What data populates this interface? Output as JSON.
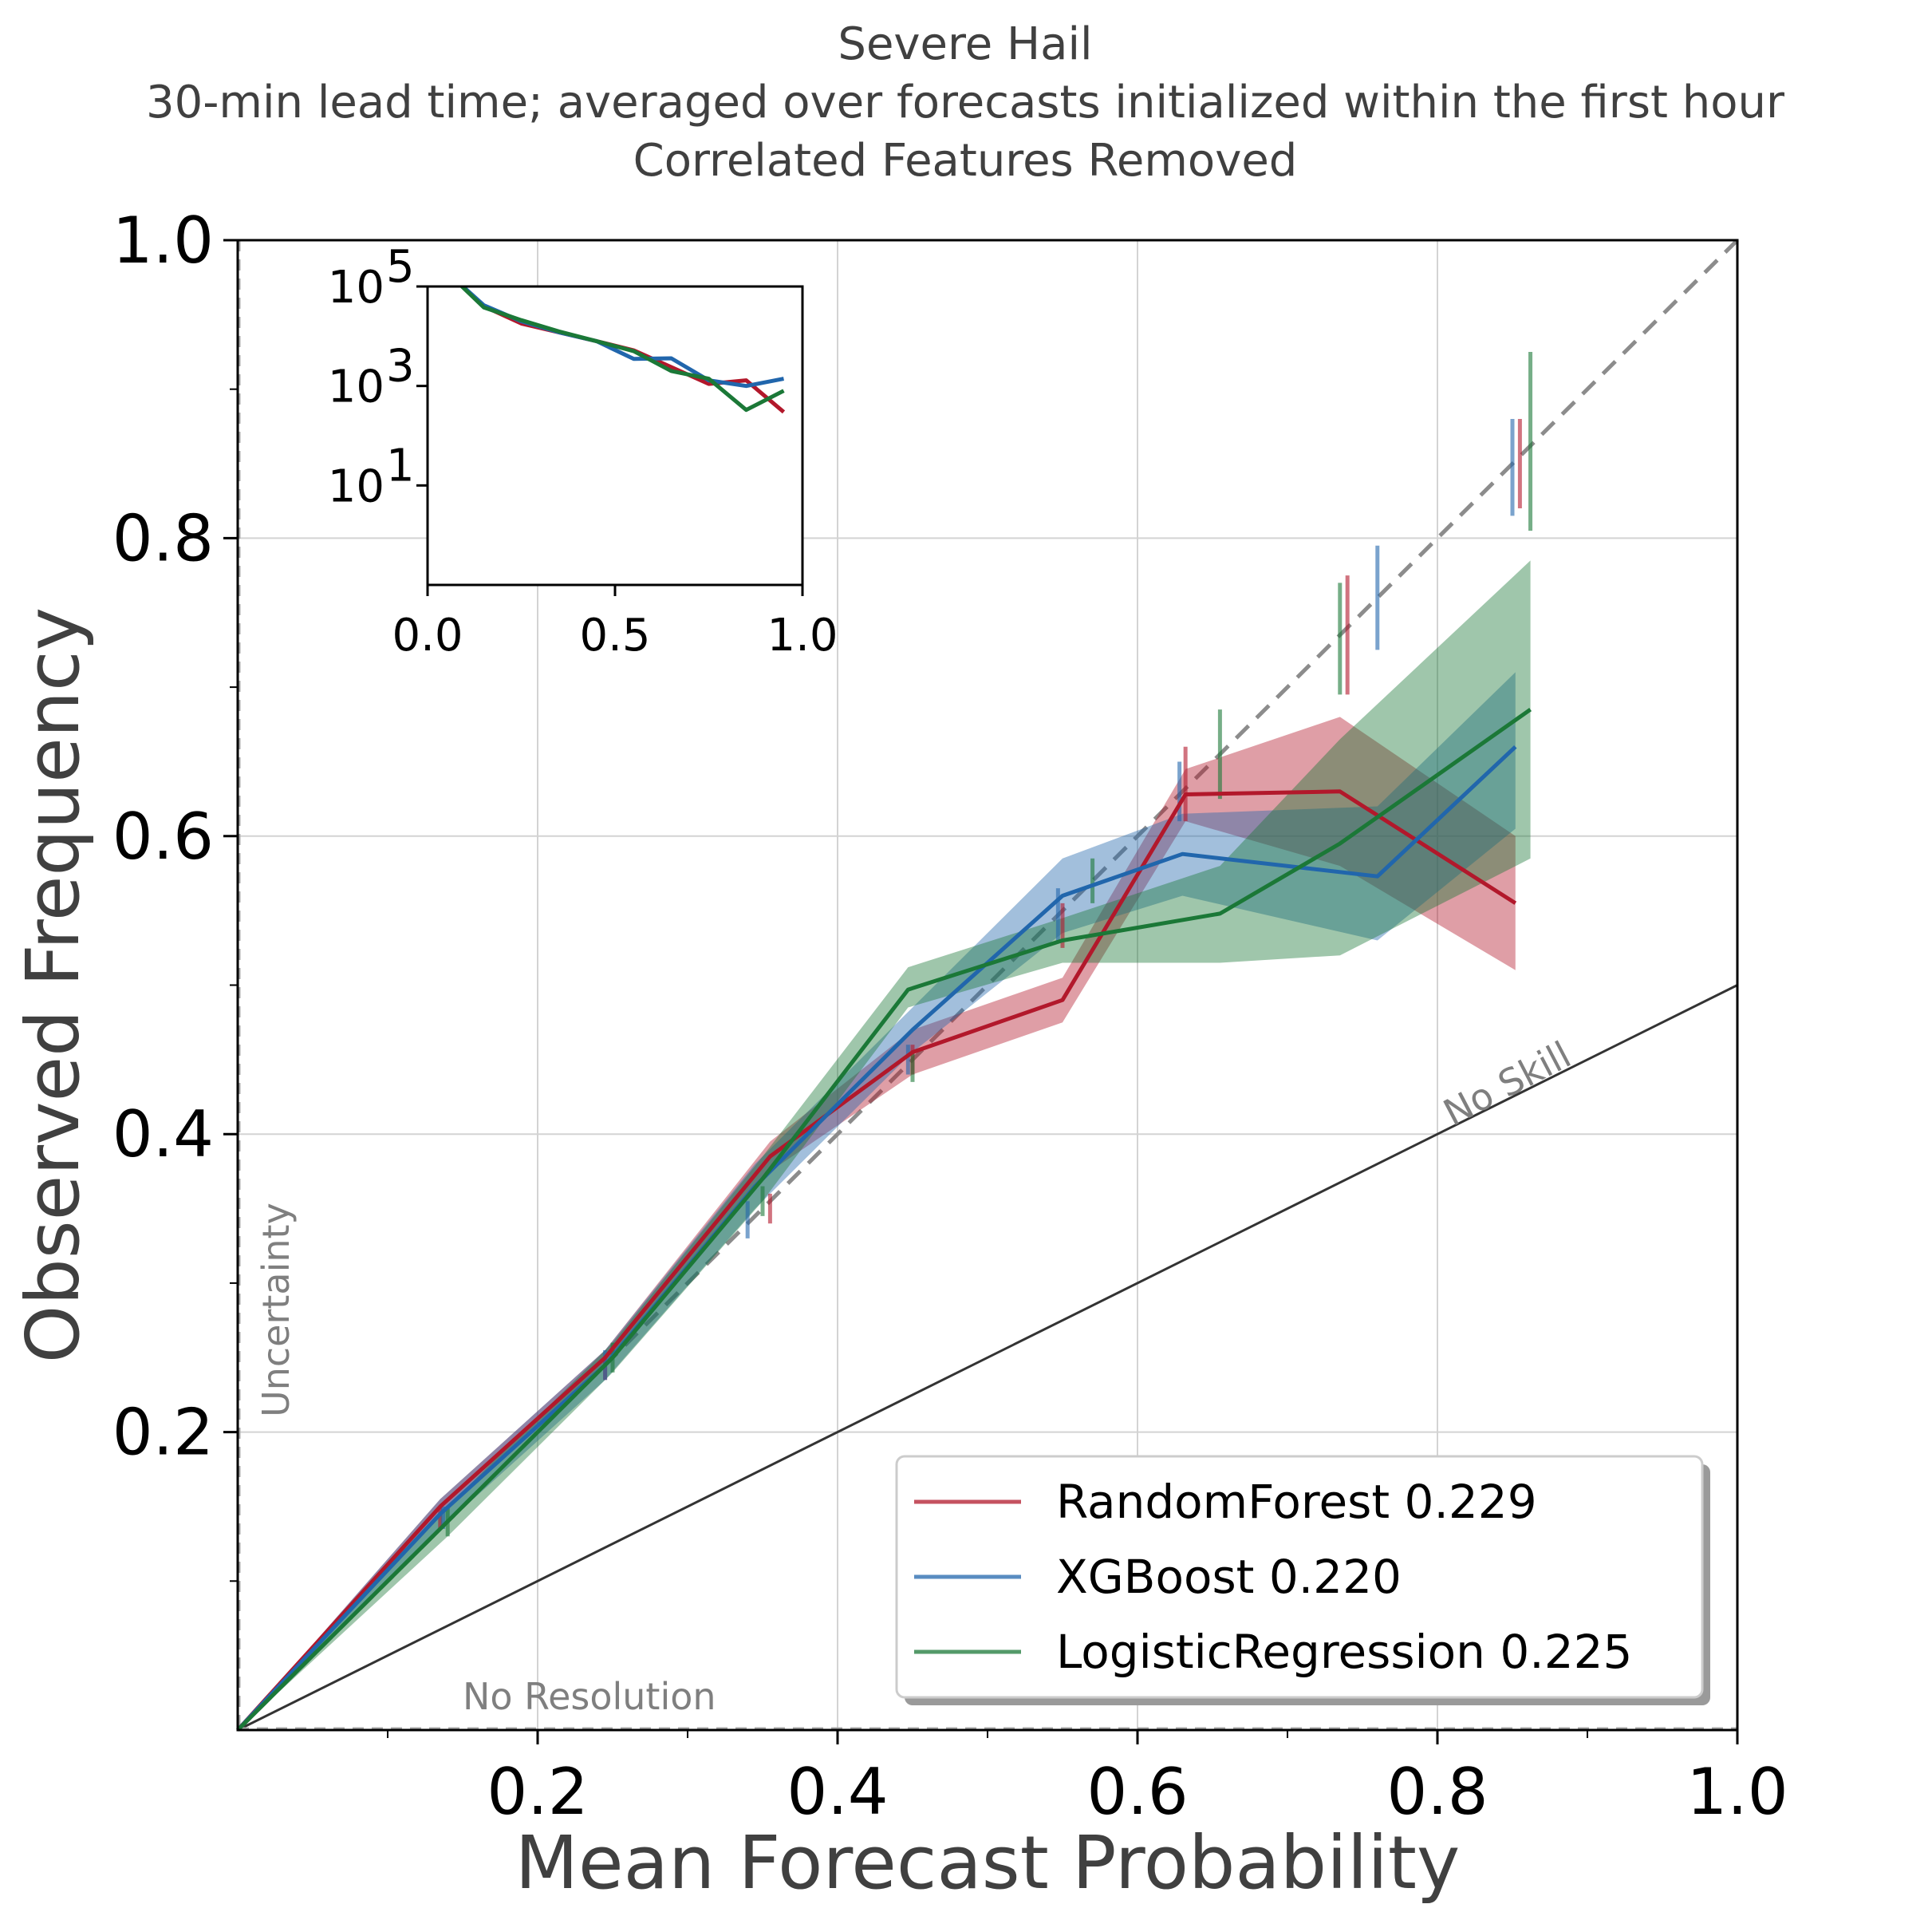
{
  "chart_data": {
    "type": "line",
    "title_lines": [
      "Severe Hail",
      "30-min lead time; averaged over forecasts initialized within the first hour",
      "Correlated Features Removed"
    ],
    "xlabel": "Mean Forecast Probability",
    "ylabel": "Observed Frequency",
    "xlim": [
      0.0,
      1.0
    ],
    "ylim": [
      0.0,
      1.0
    ],
    "x_ticks": [
      "0.2",
      "0.4",
      "0.6",
      "0.8",
      "1.0"
    ],
    "y_ticks": [
      "0.2",
      "0.4",
      "0.6",
      "0.8",
      "1.0"
    ],
    "grid": true,
    "legend_position": "lower-right",
    "reference_labels": {
      "no_skill": "No Skill",
      "no_resolution": "No Resolution",
      "uncertainty": "Uncertainty"
    },
    "series": [
      {
        "name": "RandomForest 0.229",
        "color": "#b2182b",
        "x": [
          0.0,
          0.135,
          0.245,
          0.355,
          0.45,
          0.55,
          0.632,
          0.735,
          0.852
        ],
        "y": [
          0.0,
          0.15,
          0.25,
          0.385,
          0.455,
          0.49,
          0.628,
          0.63,
          0.555
        ],
        "band_lower": [
          0.0,
          0.145,
          0.245,
          0.375,
          0.44,
          0.475,
          0.61,
          0.58,
          0.51
        ],
        "band_upper": [
          0.0,
          0.155,
          0.255,
          0.395,
          0.47,
          0.505,
          0.645,
          0.68,
          0.6
        ],
        "bar_x": [
          0.135,
          0.245,
          0.355,
          0.45,
          0.55,
          0.632,
          0.74,
          0.855
        ],
        "bar_low": [
          0.135,
          0.235,
          0.34,
          0.44,
          0.525,
          0.61,
          0.695,
          0.82
        ],
        "bar_high": [
          0.15,
          0.25,
          0.36,
          0.46,
          0.555,
          0.66,
          0.775,
          0.88
        ]
      },
      {
        "name": "XGBoost 0.220",
        "color": "#2166ac",
        "x": [
          0.0,
          0.135,
          0.245,
          0.345,
          0.45,
          0.55,
          0.63,
          0.76,
          0.852
        ],
        "y": [
          0.0,
          0.145,
          0.245,
          0.365,
          0.47,
          0.56,
          0.588,
          0.573,
          0.66
        ],
        "band_lower": [
          0.0,
          0.135,
          0.235,
          0.35,
          0.455,
          0.535,
          0.56,
          0.53,
          0.605
        ],
        "band_upper": [
          0.0,
          0.155,
          0.255,
          0.38,
          0.485,
          0.585,
          0.615,
          0.62,
          0.71
        ],
        "bar_x": [
          0.137,
          0.245,
          0.34,
          0.447,
          0.547,
          0.628,
          0.76,
          0.85
        ],
        "bar_low": [
          0.135,
          0.235,
          0.33,
          0.44,
          0.53,
          0.61,
          0.725,
          0.815
        ],
        "bar_high": [
          0.15,
          0.255,
          0.355,
          0.46,
          0.565,
          0.65,
          0.795,
          0.88
        ]
      },
      {
        "name": "LogisticRegression 0.225",
        "color": "#1b7837",
        "x": [
          0.0,
          0.14,
          0.25,
          0.35,
          0.447,
          0.55,
          0.655,
          0.735,
          0.862
        ],
        "y": [
          0.0,
          0.14,
          0.25,
          0.37,
          0.497,
          0.53,
          0.548,
          0.595,
          0.685
        ],
        "band_lower": [
          0.0,
          0.13,
          0.24,
          0.355,
          0.485,
          0.515,
          0.515,
          0.52,
          0.585
        ],
        "band_upper": [
          0.0,
          0.15,
          0.26,
          0.385,
          0.512,
          0.545,
          0.58,
          0.665,
          0.785
        ],
        "bar_x": [
          0.14,
          0.25,
          0.35,
          0.45,
          0.57,
          0.655,
          0.735,
          0.862
        ],
        "bar_low": [
          0.13,
          0.24,
          0.345,
          0.435,
          0.555,
          0.625,
          0.695,
          0.805
        ],
        "bar_high": [
          0.15,
          0.26,
          0.365,
          0.455,
          0.585,
          0.685,
          0.77,
          0.925
        ]
      }
    ],
    "inset": {
      "xlim": [
        0.0,
        1.0
      ],
      "ylog": true,
      "ylim": [
        0.1,
        100000
      ],
      "x_ticks": [
        "0.0",
        "0.5",
        "1.0"
      ],
      "y_tick_bases": [
        "10",
        "10",
        "10"
      ],
      "y_tick_exponents": [
        "5",
        "3",
        "1"
      ],
      "x": [
        0.05,
        0.15,
        0.25,
        0.35,
        0.45,
        0.55,
        0.65,
        0.75,
        0.85,
        0.95
      ],
      "series": [
        {
          "color": "#b2182b",
          "y": [
            200000,
            40000,
            18000,
            12000,
            8000,
            5200,
            2400,
            1100,
            1300,
            300
          ]
        },
        {
          "color": "#2166ac",
          "y": [
            200000,
            42000,
            20000,
            12000,
            8000,
            3500,
            3600,
            1300,
            1000,
            1400
          ]
        },
        {
          "color": "#1b7837",
          "y": [
            200000,
            38000,
            21000,
            12500,
            8000,
            5000,
            2000,
            1400,
            330,
            800
          ]
        }
      ]
    }
  }
}
